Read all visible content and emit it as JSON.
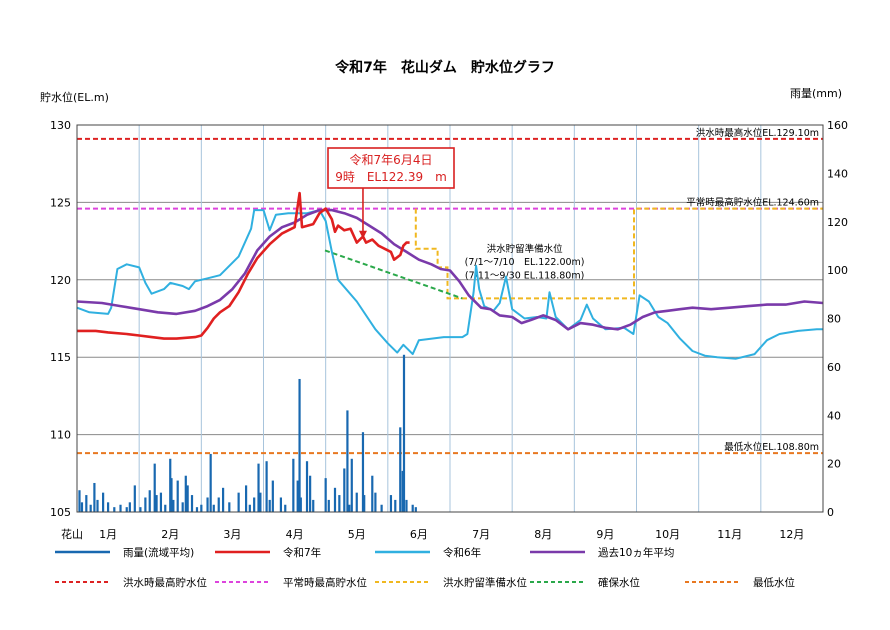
{
  "chart_data": {
    "type": "line",
    "title": "令和7年　花山ダム　貯水位グラフ",
    "left_axis_label": "貯水位(EL.m)",
    "right_axis_label": "雨量(mm)",
    "x_row_label": "花山",
    "months": [
      "1月",
      "2月",
      "3月",
      "4月",
      "5月",
      "6月",
      "7月",
      "8月",
      "9月",
      "10月",
      "11月",
      "12月"
    ],
    "ylim": [
      105,
      130
    ],
    "yticks": [
      105,
      110,
      115,
      120,
      125,
      130
    ],
    "y2lim": [
      0,
      160
    ],
    "y2ticks": [
      0,
      20,
      40,
      60,
      80,
      100,
      120,
      140,
      160
    ],
    "reference_lines": [
      {
        "name": "洪水時最高貯水位",
        "label": "洪水時最高水位EL.129.10m",
        "value": 129.1,
        "color": "#dd2222"
      },
      {
        "name": "平常時最高貯水位",
        "label": "平常時最高貯水位EL.124.60m",
        "value": 124.6,
        "color": "#dd44dd"
      },
      {
        "name": "最低水位",
        "label": "最低水位EL.108.80m",
        "value": 108.8,
        "color": "#e87820"
      }
    ],
    "flood_prep": {
      "name": "洪水貯留準備水位",
      "label_title": "洪水貯留準備水位",
      "label_line1": "(7/1～7/10　EL.122.00m)",
      "label_line2": "(7/11～9/30 EL.118.80m)",
      "color": "#f0b820",
      "points": [
        [
          5.45,
          124.6
        ],
        [
          5.45,
          122.0
        ],
        [
          5.8,
          122.0
        ],
        [
          5.8,
          120.8
        ],
        [
          5.96,
          120.8
        ],
        [
          5.96,
          118.8
        ],
        [
          8.96,
          118.8
        ],
        [
          8.96,
          124.6
        ],
        [
          12.0,
          124.6
        ]
      ]
    },
    "secure_level": {
      "name": "確保水位",
      "color": "#2aa84a",
      "points": [
        [
          3.99,
          121.9
        ],
        [
          6.2,
          118.8
        ]
      ]
    },
    "annotation": {
      "line1": "令和7年6月4日",
      "line2": "9時　EL122.39　m",
      "x": 4.6,
      "y": 122.39
    },
    "series": [
      {
        "name": "令和7年",
        "color": "#e02020",
        "points": [
          [
            0,
            116.7
          ],
          [
            0.3,
            116.7
          ],
          [
            0.5,
            116.6
          ],
          [
            0.8,
            116.5
          ],
          [
            1.0,
            116.4
          ],
          [
            1.2,
            116.3
          ],
          [
            1.4,
            116.2
          ],
          [
            1.6,
            116.2
          ],
          [
            1.9,
            116.3
          ],
          [
            2.0,
            116.4
          ],
          [
            2.1,
            116.9
          ],
          [
            2.2,
            117.5
          ],
          [
            2.3,
            117.9
          ],
          [
            2.45,
            118.3
          ],
          [
            2.6,
            119.2
          ],
          [
            2.75,
            120.4
          ],
          [
            2.9,
            121.4
          ],
          [
            3.1,
            122.3
          ],
          [
            3.3,
            123.0
          ],
          [
            3.5,
            123.4
          ],
          [
            3.58,
            125.6
          ],
          [
            3.62,
            123.4
          ],
          [
            3.8,
            123.6
          ],
          [
            3.9,
            124.3
          ],
          [
            4.0,
            124.6
          ],
          [
            4.1,
            123.9
          ],
          [
            4.15,
            123.1
          ],
          [
            4.2,
            123.5
          ],
          [
            4.3,
            123.2
          ],
          [
            4.4,
            123.3
          ],
          [
            4.5,
            122.4
          ],
          [
            4.6,
            122.8
          ],
          [
            4.65,
            122.4
          ],
          [
            4.75,
            122.6
          ],
          [
            4.85,
            122.2
          ],
          [
            4.95,
            122.0
          ],
          [
            5.05,
            121.8
          ],
          [
            5.1,
            121.3
          ],
          [
            5.2,
            121.6
          ],
          [
            5.25,
            122.2
          ],
          [
            5.3,
            122.4
          ],
          [
            5.35,
            122.4
          ]
        ]
      },
      {
        "name": "令和6年",
        "color": "#30b0e0",
        "points": [
          [
            0,
            118.2
          ],
          [
            0.2,
            117.9
          ],
          [
            0.5,
            117.8
          ],
          [
            0.55,
            118.2
          ],
          [
            0.65,
            120.7
          ],
          [
            0.8,
            121.0
          ],
          [
            1.0,
            120.8
          ],
          [
            1.1,
            119.8
          ],
          [
            1.2,
            119.1
          ],
          [
            1.4,
            119.4
          ],
          [
            1.5,
            119.8
          ],
          [
            1.7,
            119.6
          ],
          [
            1.8,
            119.4
          ],
          [
            1.9,
            119.9
          ],
          [
            2.1,
            120.1
          ],
          [
            2.3,
            120.3
          ],
          [
            2.6,
            121.5
          ],
          [
            2.8,
            123.3
          ],
          [
            2.85,
            124.5
          ],
          [
            3.0,
            124.5
          ],
          [
            3.1,
            123.2
          ],
          [
            3.2,
            124.2
          ],
          [
            3.4,
            124.3
          ],
          [
            3.7,
            124.3
          ],
          [
            3.9,
            124.5
          ],
          [
            4.0,
            123.8
          ],
          [
            4.1,
            121.8
          ],
          [
            4.2,
            120.0
          ],
          [
            4.5,
            118.6
          ],
          [
            4.8,
            116.8
          ],
          [
            5.0,
            115.9
          ],
          [
            5.15,
            115.3
          ],
          [
            5.25,
            115.8
          ],
          [
            5.4,
            115.2
          ],
          [
            5.5,
            116.1
          ],
          [
            5.9,
            116.3
          ],
          [
            6.2,
            116.3
          ],
          [
            6.28,
            116.5
          ],
          [
            6.38,
            119.2
          ],
          [
            6.42,
            120.9
          ],
          [
            6.47,
            119.4
          ],
          [
            6.55,
            118.3
          ],
          [
            6.7,
            118.0
          ],
          [
            6.8,
            118.5
          ],
          [
            6.9,
            120.2
          ],
          [
            7.0,
            118.1
          ],
          [
            7.2,
            117.5
          ],
          [
            7.4,
            117.6
          ],
          [
            7.55,
            117.5
          ],
          [
            7.6,
            119.2
          ],
          [
            7.7,
            117.6
          ],
          [
            7.9,
            116.8
          ],
          [
            8.1,
            117.4
          ],
          [
            8.2,
            118.4
          ],
          [
            8.3,
            117.5
          ],
          [
            8.5,
            116.8
          ],
          [
            8.8,
            116.9
          ],
          [
            8.95,
            116.5
          ],
          [
            9.05,
            119.0
          ],
          [
            9.2,
            118.6
          ],
          [
            9.35,
            117.6
          ],
          [
            9.5,
            117.2
          ],
          [
            9.7,
            116.2
          ],
          [
            9.9,
            115.4
          ],
          [
            10.1,
            115.1
          ],
          [
            10.3,
            115.0
          ],
          [
            10.6,
            114.9
          ],
          [
            10.9,
            115.2
          ],
          [
            11.1,
            116.1
          ],
          [
            11.3,
            116.5
          ],
          [
            11.6,
            116.7
          ],
          [
            11.9,
            116.8
          ],
          [
            12.0,
            116.8
          ]
        ]
      },
      {
        "name": "過去10ヵ年平均",
        "color": "#7a3aaa",
        "points": [
          [
            0,
            118.6
          ],
          [
            0.4,
            118.5
          ],
          [
            0.7,
            118.3
          ],
          [
            1.0,
            118.1
          ],
          [
            1.3,
            117.9
          ],
          [
            1.6,
            117.8
          ],
          [
            1.9,
            118.0
          ],
          [
            2.1,
            118.3
          ],
          [
            2.3,
            118.7
          ],
          [
            2.5,
            119.4
          ],
          [
            2.7,
            120.4
          ],
          [
            2.9,
            121.9
          ],
          [
            3.1,
            122.8
          ],
          [
            3.3,
            123.4
          ],
          [
            3.5,
            123.7
          ],
          [
            3.7,
            124.2
          ],
          [
            3.9,
            124.5
          ],
          [
            4.1,
            124.5
          ],
          [
            4.3,
            124.3
          ],
          [
            4.5,
            124.0
          ],
          [
            4.7,
            123.5
          ],
          [
            4.9,
            123.0
          ],
          [
            5.1,
            122.3
          ],
          [
            5.3,
            121.8
          ],
          [
            5.5,
            121.3
          ],
          [
            5.7,
            121.0
          ],
          [
            5.85,
            120.7
          ],
          [
            6.0,
            120.6
          ],
          [
            6.15,
            119.9
          ],
          [
            6.3,
            119.0
          ],
          [
            6.5,
            118.2
          ],
          [
            6.65,
            118.1
          ],
          [
            6.8,
            117.7
          ],
          [
            7.0,
            117.6
          ],
          [
            7.15,
            117.2
          ],
          [
            7.3,
            117.4
          ],
          [
            7.5,
            117.7
          ],
          [
            7.7,
            117.4
          ],
          [
            7.9,
            116.8
          ],
          [
            8.1,
            117.2
          ],
          [
            8.3,
            117.1
          ],
          [
            8.5,
            116.9
          ],
          [
            8.7,
            116.8
          ],
          [
            8.9,
            117.1
          ],
          [
            9.1,
            117.6
          ],
          [
            9.3,
            117.9
          ],
          [
            9.5,
            118.0
          ],
          [
            9.7,
            118.1
          ],
          [
            9.9,
            118.2
          ],
          [
            10.2,
            118.1
          ],
          [
            10.5,
            118.2
          ],
          [
            10.8,
            118.3
          ],
          [
            11.1,
            118.4
          ],
          [
            11.4,
            118.4
          ],
          [
            11.7,
            118.6
          ],
          [
            12.0,
            118.5
          ]
        ]
      }
    ],
    "rainfall": {
      "name": "雨量(流域平均)",
      "color": "#1868b0",
      "points": [
        [
          0.04,
          9
        ],
        [
          0.08,
          4
        ],
        [
          0.15,
          7
        ],
        [
          0.22,
          3
        ],
        [
          0.28,
          12
        ],
        [
          0.33,
          5
        ],
        [
          0.42,
          8
        ],
        [
          0.5,
          4
        ],
        [
          0.6,
          2
        ],
        [
          0.7,
          3
        ],
        [
          0.8,
          2
        ],
        [
          0.85,
          4
        ],
        [
          0.93,
          11
        ],
        [
          1.02,
          2
        ],
        [
          1.1,
          6
        ],
        [
          1.17,
          9
        ],
        [
          1.25,
          20
        ],
        [
          1.28,
          7
        ],
        [
          1.35,
          8
        ],
        [
          1.42,
          3
        ],
        [
          1.5,
          22
        ],
        [
          1.52,
          14
        ],
        [
          1.55,
          5
        ],
        [
          1.62,
          13
        ],
        [
          1.7,
          4
        ],
        [
          1.75,
          15
        ],
        [
          1.78,
          11
        ],
        [
          1.85,
          7
        ],
        [
          1.93,
          2
        ],
        [
          2.0,
          3
        ],
        [
          2.1,
          6
        ],
        [
          2.15,
          24
        ],
        [
          2.2,
          3
        ],
        [
          2.28,
          6
        ],
        [
          2.35,
          10
        ],
        [
          2.45,
          4
        ],
        [
          2.6,
          8
        ],
        [
          2.72,
          11
        ],
        [
          2.78,
          3
        ],
        [
          2.85,
          6
        ],
        [
          2.92,
          20
        ],
        [
          2.95,
          8
        ],
        [
          3.05,
          21
        ],
        [
          3.1,
          5
        ],
        [
          3.15,
          13
        ],
        [
          3.28,
          6
        ],
        [
          3.35,
          3
        ],
        [
          3.48,
          22
        ],
        [
          3.55,
          13
        ],
        [
          3.58,
          55
        ],
        [
          3.6,
          6
        ],
        [
          3.7,
          21
        ],
        [
          3.75,
          15
        ],
        [
          3.8,
          5
        ],
        [
          4.0,
          14
        ],
        [
          4.05,
          5
        ],
        [
          4.15,
          10
        ],
        [
          4.22,
          7
        ],
        [
          4.3,
          18
        ],
        [
          4.35,
          42
        ],
        [
          4.38,
          3
        ],
        [
          4.42,
          22
        ],
        [
          4.5,
          8
        ],
        [
          4.6,
          33
        ],
        [
          4.62,
          7
        ],
        [
          4.75,
          15
        ],
        [
          4.8,
          8
        ],
        [
          4.9,
          3
        ],
        [
          5.05,
          7
        ],
        [
          5.12,
          5
        ],
        [
          5.2,
          35
        ],
        [
          5.24,
          17
        ],
        [
          5.26,
          65
        ],
        [
          5.3,
          5
        ],
        [
          5.4,
          3
        ],
        [
          5.45,
          2
        ]
      ]
    },
    "legend": [
      {
        "label": "雨量(流域平均)",
        "color": "#1868b0",
        "style": "solid"
      },
      {
        "label": "令和7年",
        "color": "#e02020",
        "style": "solid"
      },
      {
        "label": "令和6年",
        "color": "#30b0e0",
        "style": "solid"
      },
      {
        "label": "過去10ヵ年平均",
        "color": "#7a3aaa",
        "style": "solid"
      },
      {
        "label": "洪水時最高貯水位",
        "color": "#dd2222",
        "style": "dash"
      },
      {
        "label": "平常時最高貯水位",
        "color": "#dd44dd",
        "style": "dash"
      },
      {
        "label": "洪水貯留準備水位",
        "color": "#f0b820",
        "style": "dash"
      },
      {
        "label": "確保水位",
        "color": "#2aa84a",
        "style": "dash"
      },
      {
        "label": "最低水位",
        "color": "#e87820",
        "style": "dash"
      }
    ],
    "grid": {
      "horizontal": true,
      "vertical": true
    }
  }
}
